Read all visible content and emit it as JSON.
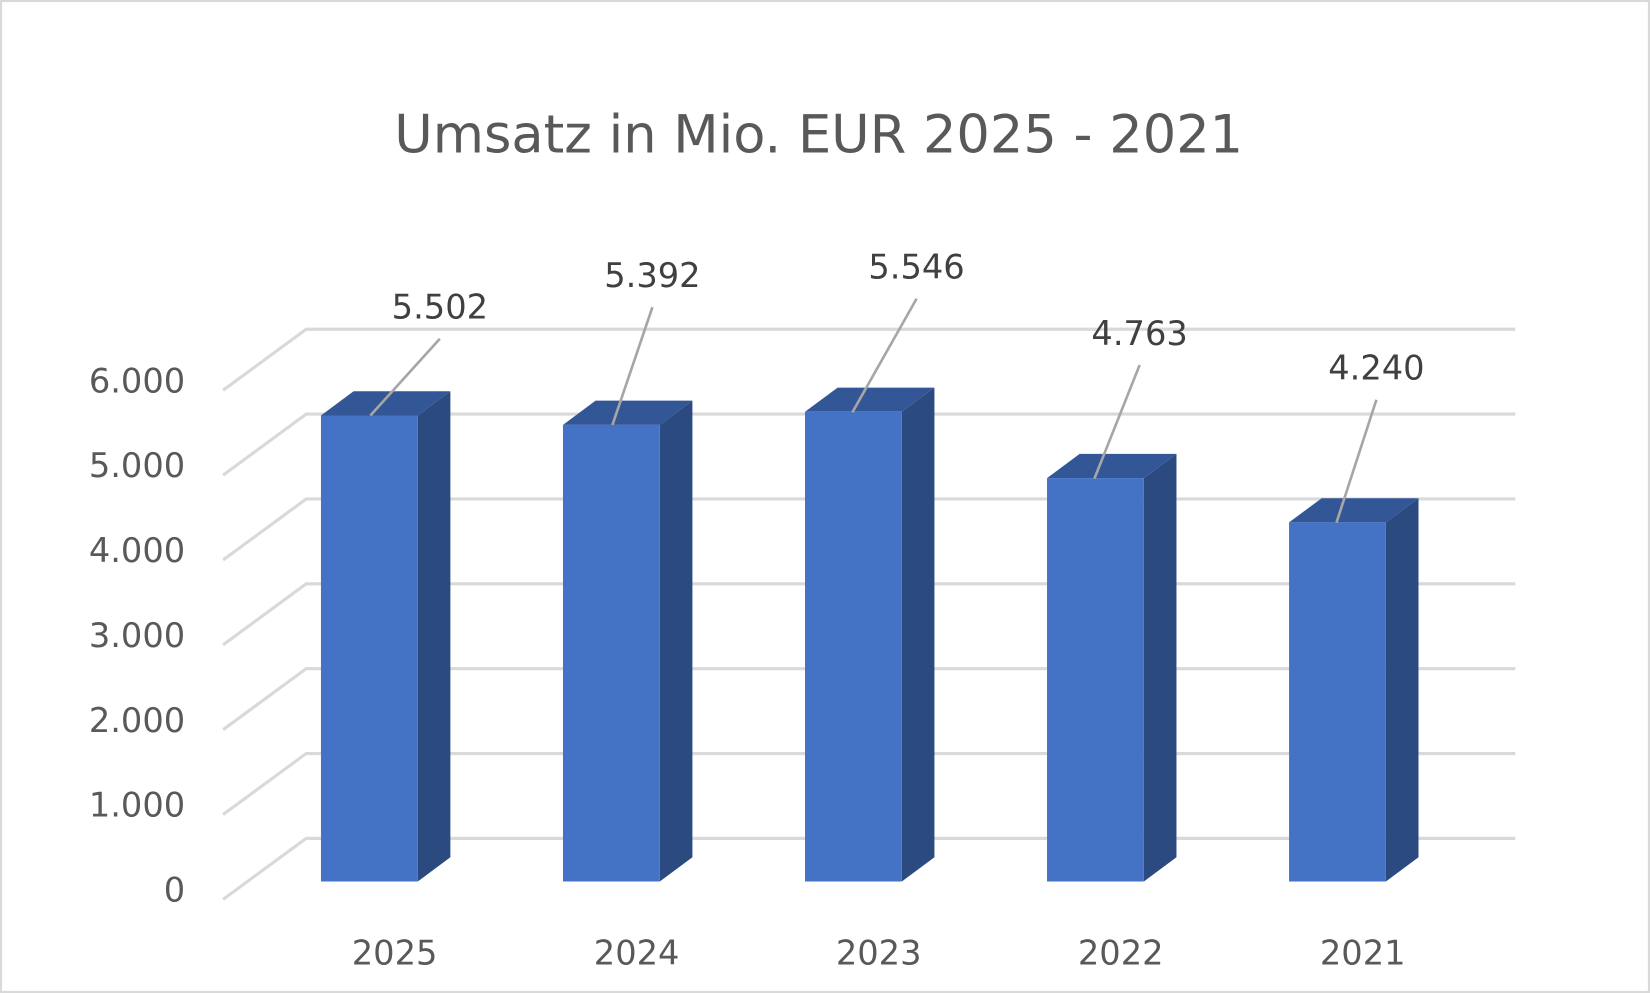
{
  "chart_data": {
    "type": "bar",
    "style": "3d-column",
    "title": "Umsatz in Mio. EUR  2025 - 2021",
    "xlabel": "",
    "ylabel": "",
    "categories": [
      "2025",
      "2024",
      "2023",
      "2022",
      "2021"
    ],
    "values": [
      5502,
      5392,
      5546,
      4763,
      4240
    ],
    "data_labels": [
      "5.502",
      "5.392",
      "5.546",
      "4.763",
      "4.240"
    ],
    "ylim": [
      0,
      6000
    ],
    "yticks": [
      0,
      1000,
      2000,
      3000,
      4000,
      5000,
      6000
    ],
    "ytick_labels": [
      "0",
      "1.000",
      "2.000",
      "3.000",
      "4.000",
      "5.000",
      "6.000"
    ],
    "grid": true,
    "legend": "none",
    "colors": {
      "bar_front": "#4472C4",
      "bar_side": "#2A4A80",
      "bar_top": "#335696",
      "grid": "#D9D9D9",
      "text": "#595959",
      "label": "#404040"
    }
  }
}
